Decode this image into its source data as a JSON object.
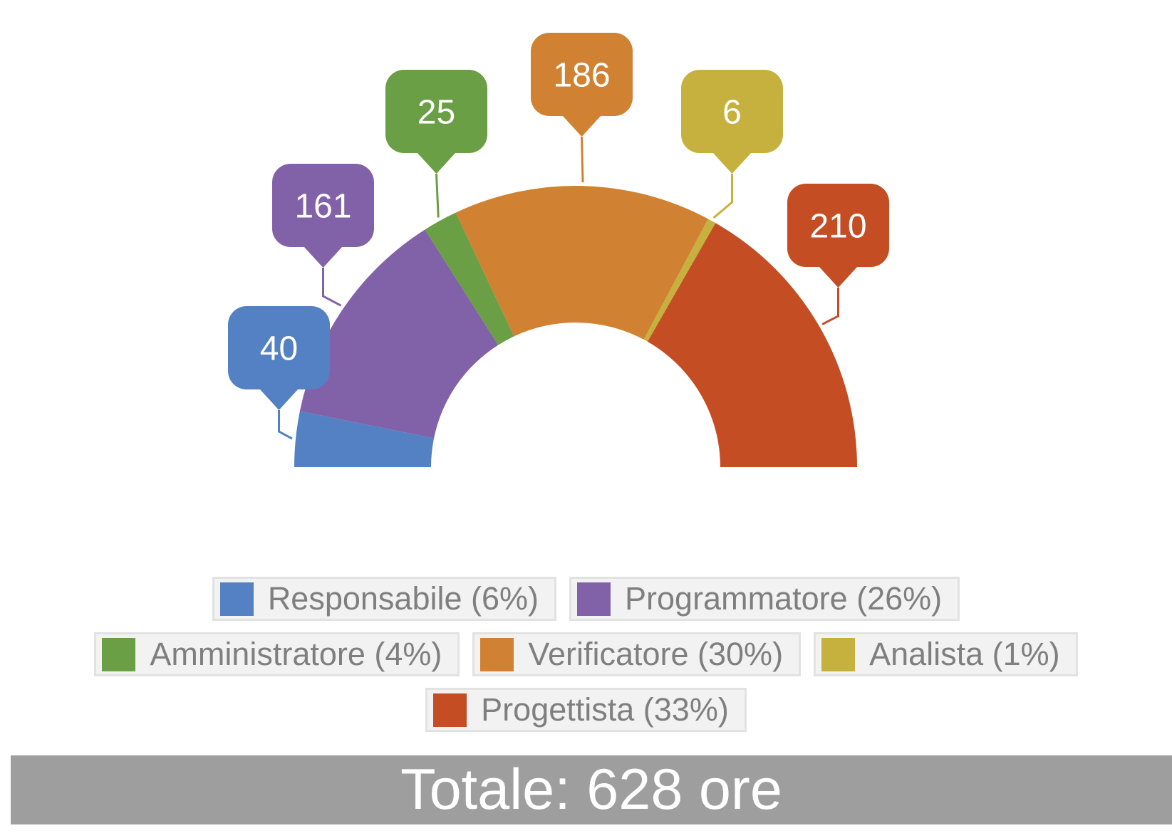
{
  "chart_data": {
    "type": "pie",
    "variant": "half-doughnut",
    "unit": "ore",
    "slices": [
      {
        "name": "Responsabile",
        "value": 40,
        "percent_label": "6%",
        "color": "#5480c4"
      },
      {
        "name": "Programmatore",
        "value": 161,
        "percent_label": "26%",
        "color": "#8162a8"
      },
      {
        "name": "Amministratore",
        "value": 25,
        "percent_label": "4%",
        "color": "#6a9f45"
      },
      {
        "name": "Verificatore",
        "value": 186,
        "percent_label": "30%",
        "color": "#d08232"
      },
      {
        "name": "Analista",
        "value": 6,
        "percent_label": "1%",
        "color": "#c6b03e"
      },
      {
        "name": "Progettista",
        "value": 210,
        "percent_label": "33%",
        "color": "#c44d24"
      }
    ],
    "data_labels": [
      "40",
      "161",
      "25",
      "186",
      "6",
      "210"
    ],
    "legend": {
      "placement": "bottom",
      "rows": [
        [
          "Responsabile (6%)",
          "Programmatore (26%)"
        ],
        [
          "Amministratore (4%)",
          "Verificatore (30%)",
          "Analista (1%)"
        ],
        [
          "Progettista (33%)"
        ]
      ]
    }
  },
  "total_label": "Totale: 628 ore"
}
